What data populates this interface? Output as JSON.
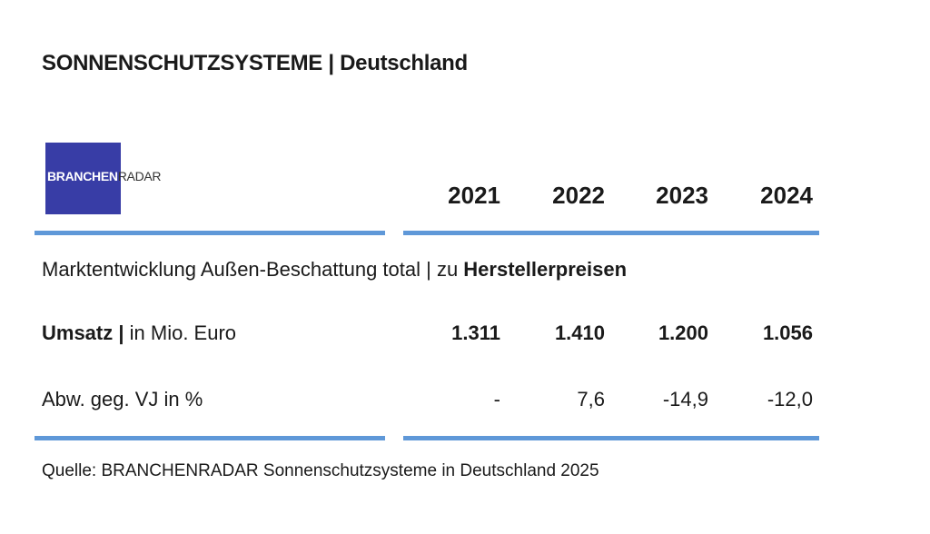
{
  "header": {
    "title": "SONNENSCHUTZSYSTEME | Deutschland"
  },
  "logo": {
    "part_a": "BRANCHEN",
    "part_b": "RADAR"
  },
  "table": {
    "columns": [
      "2021",
      "2022",
      "2023",
      "2024"
    ],
    "section": {
      "label": "Marktentwicklung Außen-Beschattung total | zu ",
      "label_bold": "Herstellerpreisen"
    },
    "rows": [
      {
        "label_bold": "Umsatz |",
        "label": " in Mio. Euro",
        "cells": [
          "1.311",
          "1.410",
          "1.200",
          "1.056"
        ]
      },
      {
        "label": "Abw. geg. VJ in %",
        "cells": [
          "-",
          "7,6",
          "-14,9",
          "-12,0"
        ]
      }
    ]
  },
  "source": "Quelle: BRANCHENRADAR Sonnenschutzsysteme in Deutschland 2025"
}
